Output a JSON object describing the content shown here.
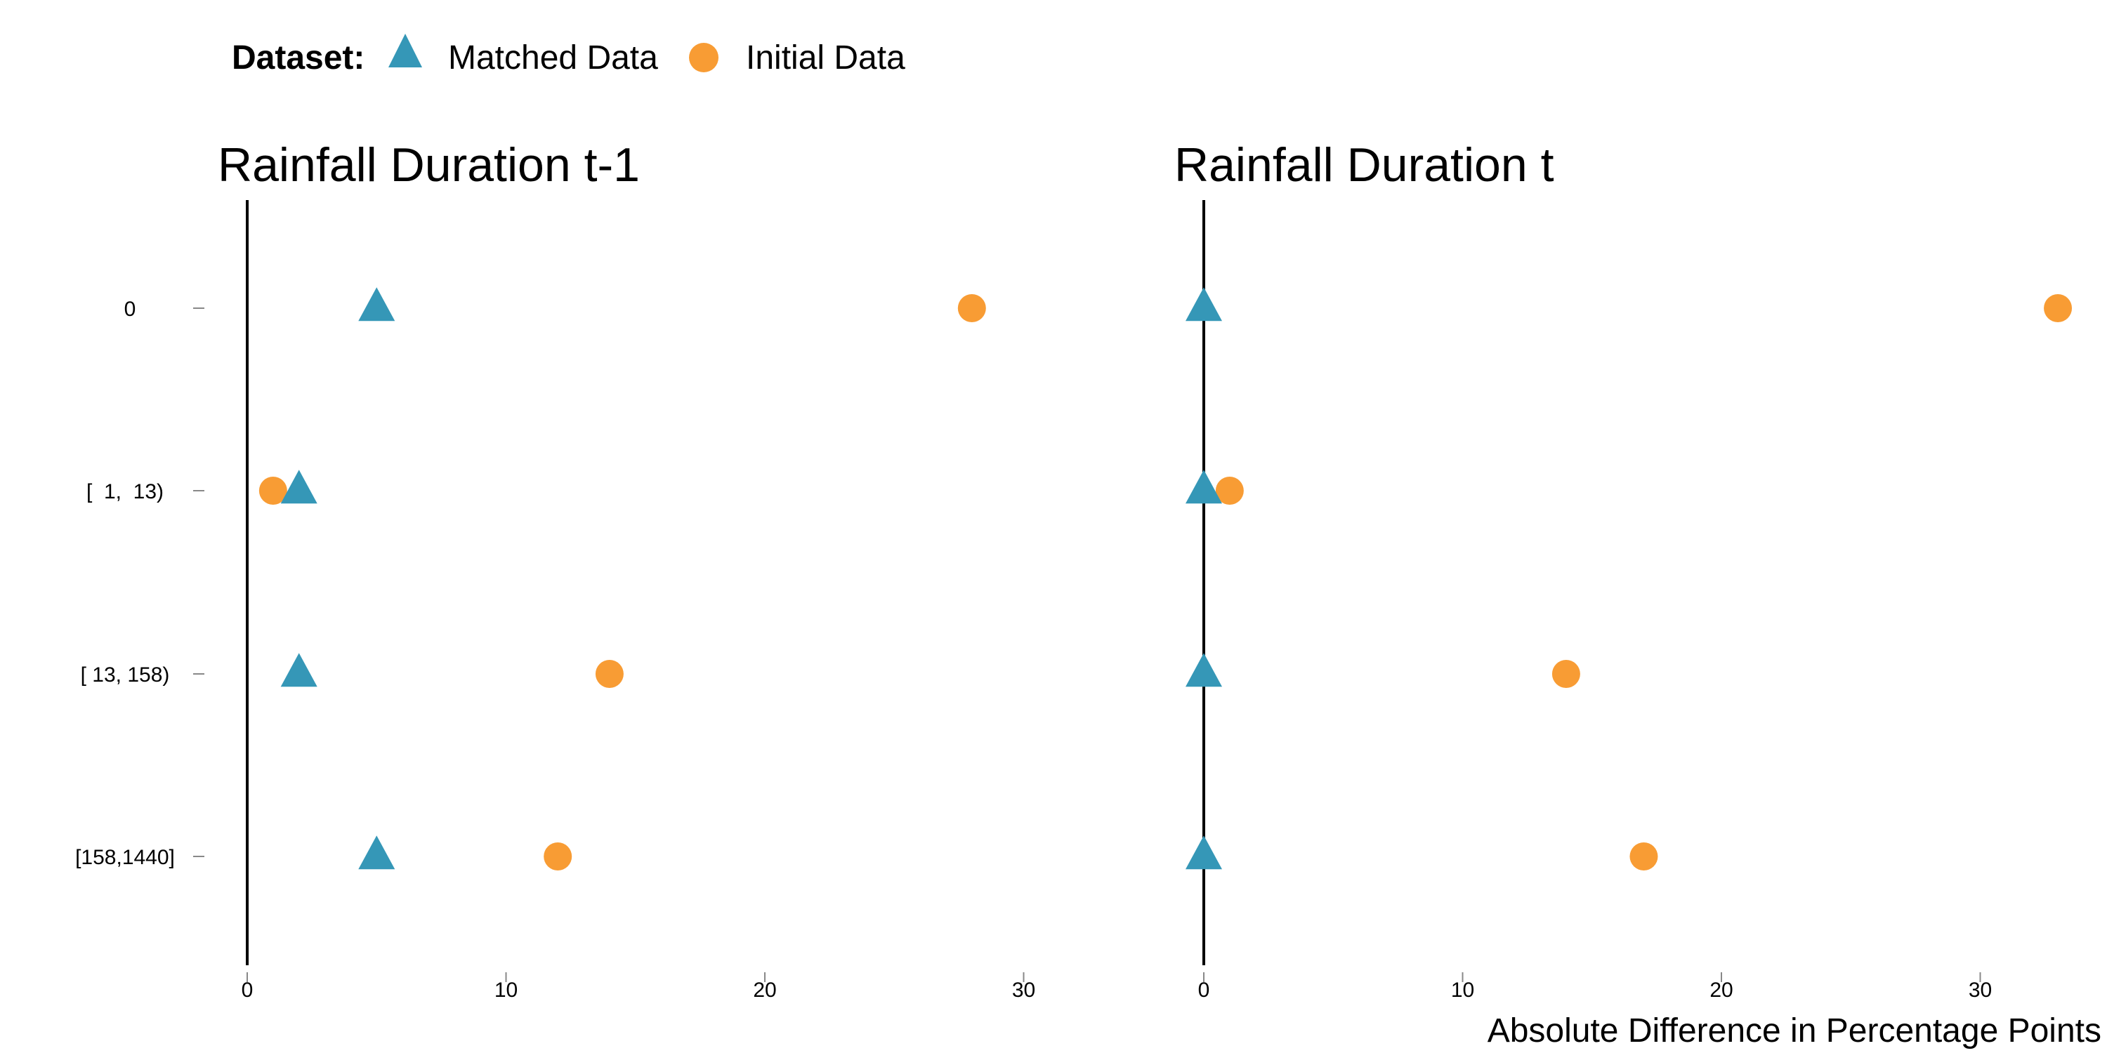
{
  "chart_data": {
    "type": "scatter",
    "legend": {
      "title": "Dataset:",
      "entries": [
        {
          "name": "Matched Data",
          "shape": "triangle",
          "color": "#3597B7"
        },
        {
          "name": "Initial Data",
          "shape": "circle",
          "color": "#F89C34"
        }
      ],
      "placement": "top-left"
    },
    "xlabel": "Absolute Difference in Percentage Points",
    "categories": [
      "0",
      "[  1,  13)",
      "[ 13, 158)",
      "[158,1440]"
    ],
    "panels": [
      {
        "title": "Rainfall Duration t-1",
        "xlim": [
          0,
          34
        ],
        "xticks": [
          0,
          10,
          20,
          30
        ],
        "series": [
          {
            "name": "Matched Data",
            "values": [
              5,
              2,
              2,
              5
            ]
          },
          {
            "name": "Initial Data",
            "values": [
              28,
              1,
              14,
              12
            ]
          }
        ]
      },
      {
        "title": "Rainfall Duration t",
        "xlim": [
          0,
          34
        ],
        "xticks": [
          0,
          10,
          20,
          30
        ],
        "series": [
          {
            "name": "Matched Data",
            "values": [
              0,
              0,
              0,
              0
            ]
          },
          {
            "name": "Initial Data",
            "values": [
              33,
              1,
              14,
              17
            ]
          }
        ]
      }
    ],
    "grid": false
  }
}
